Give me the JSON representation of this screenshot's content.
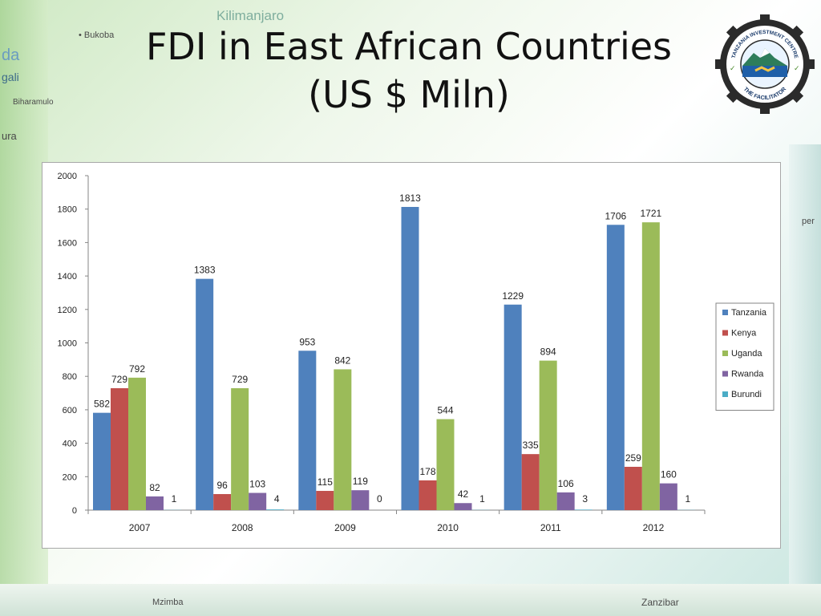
{
  "title_line1": "FDI in East African Countries",
  "title_line2": "(US $ Miln)",
  "map_labels": {
    "kilimanjaro": "Kilimanjaro",
    "bukoba": "• Bukoba",
    "da": "da",
    "gali": "gali",
    "biharamulo": "Biharamulo",
    "ura": "ura",
    "mzimba": "Mzimba",
    "zanzibar": "Zanzibar",
    "per": "per"
  },
  "logo": {
    "top_text": "TANZANIA INVESTMENT CENTRE",
    "bottom_text": "THE FACILITATOR"
  },
  "colors": {
    "Tanzania": "#4f81bd",
    "Kenya": "#c0504d",
    "Uganda": "#9bbb59",
    "Rwanda": "#8064a2",
    "Burundi": "#4bacc6"
  },
  "chart_data": {
    "type": "bar",
    "categories": [
      "2007",
      "2008",
      "2009",
      "2010",
      "2011",
      "2012"
    ],
    "series": [
      {
        "name": "Tanzania",
        "values": [
          582,
          1383,
          953,
          1813,
          1229,
          1706
        ]
      },
      {
        "name": "Kenya",
        "values": [
          729,
          96,
          115,
          178,
          335,
          259
        ]
      },
      {
        "name": "Uganda",
        "values": [
          792,
          729,
          842,
          544,
          894,
          1721
        ]
      },
      {
        "name": "Rwanda",
        "values": [
          82,
          103,
          119,
          42,
          106,
          160
        ]
      },
      {
        "name": "Burundi",
        "values": [
          1,
          4,
          0,
          1,
          3,
          1
        ]
      }
    ],
    "y_ticks": [
      "0",
      "200",
      "400",
      "600",
      "800",
      "1000",
      "1200",
      "1400",
      "1600",
      "1800",
      "2000"
    ],
    "ylim": [
      0,
      2000
    ],
    "grid": false,
    "legend_position": "right",
    "xlabel": "",
    "ylabel": ""
  }
}
